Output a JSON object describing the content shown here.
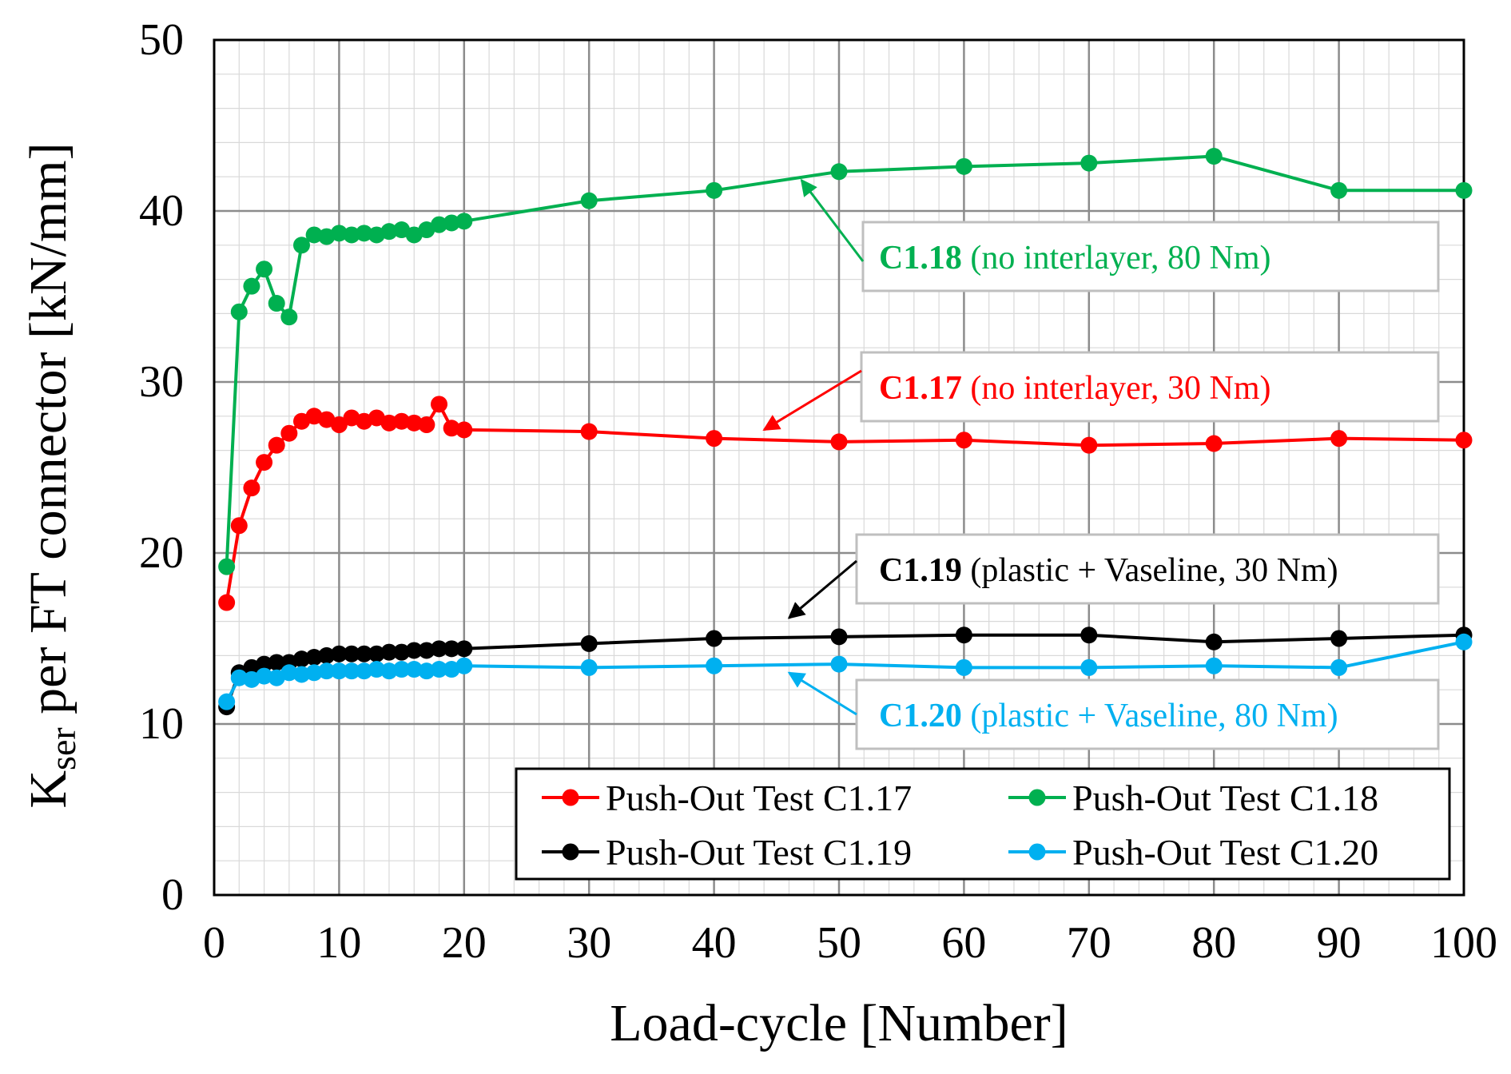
{
  "chart_data": {
    "type": "line",
    "title": "",
    "xlabel": "Load-cycle [Number]",
    "ylabel_main": "K",
    "ylabel_sub": "ser",
    "ylabel_rest": " per FT connector [kN/mm]",
    "xlim": [
      0,
      100
    ],
    "ylim": [
      0,
      50
    ],
    "xticks": [
      0,
      10,
      20,
      30,
      40,
      50,
      60,
      70,
      80,
      90,
      100
    ],
    "yticks": [
      0,
      10,
      20,
      30,
      40,
      50
    ],
    "grid": true,
    "x": [
      1,
      2,
      3,
      4,
      5,
      6,
      7,
      8,
      9,
      10,
      11,
      12,
      13,
      14,
      15,
      16,
      17,
      18,
      19,
      20,
      30,
      40,
      50,
      60,
      70,
      80,
      90,
      100
    ],
    "series": [
      {
        "name": "Push-Out Test C1.17",
        "color": "#ff0000",
        "values": [
          17.1,
          21.6,
          23.8,
          25.3,
          26.3,
          27.0,
          27.7,
          28.0,
          27.8,
          27.5,
          27.9,
          27.7,
          27.9,
          27.6,
          27.7,
          27.6,
          27.5,
          28.7,
          27.3,
          27.2,
          27.1,
          26.7,
          26.5,
          26.6,
          26.3,
          26.4,
          26.7,
          26.6
        ]
      },
      {
        "name": "Push-Out Test C1.18",
        "color": "#00b050",
        "values": [
          19.2,
          34.1,
          35.6,
          36.6,
          34.6,
          33.8,
          38.0,
          38.6,
          38.5,
          38.7,
          38.6,
          38.7,
          38.6,
          38.8,
          38.9,
          38.6,
          38.9,
          39.2,
          39.3,
          39.4,
          40.6,
          41.2,
          42.3,
          42.6,
          42.8,
          43.2,
          41.2,
          41.2
        ]
      },
      {
        "name": "Push-Out Test C1.19",
        "color": "#000000",
        "values": [
          11.0,
          13.0,
          13.3,
          13.5,
          13.6,
          13.6,
          13.8,
          13.9,
          14.0,
          14.1,
          14.1,
          14.1,
          14.1,
          14.2,
          14.2,
          14.3,
          14.3,
          14.4,
          14.4,
          14.4,
          14.7,
          15.0,
          15.1,
          15.2,
          15.2,
          14.8,
          15.0,
          15.2
        ]
      },
      {
        "name": "Push-Out Test C1.20",
        "color": "#00b0f0",
        "values": [
          11.3,
          12.7,
          12.6,
          12.8,
          12.7,
          13.0,
          12.9,
          13.0,
          13.1,
          13.1,
          13.1,
          13.1,
          13.2,
          13.1,
          13.2,
          13.2,
          13.1,
          13.2,
          13.2,
          13.4,
          13.3,
          13.4,
          13.5,
          13.3,
          13.3,
          13.4,
          13.3,
          14.8
        ]
      }
    ],
    "annotations": [
      {
        "bold": "C1.18",
        "rest": " (no interlayer, 80 Nm)",
        "color": "#00b050",
        "arrow_tip": {
          "x": 47,
          "y": 41.8
        }
      },
      {
        "bold": "C1.17",
        "rest": " (no interlayer, 30 Nm)",
        "color": "#ff0000",
        "arrow_tip": {
          "x": 44,
          "y": 27.2
        }
      },
      {
        "bold": "C1.19",
        "rest": " (plastic + Vaseline, 30 Nm)",
        "color": "#000000",
        "arrow_tip": {
          "x": 46,
          "y": 16.2
        }
      },
      {
        "bold": "C1.20",
        "rest": " (plastic + Vaseline, 80 Nm)",
        "color": "#00b0f0",
        "arrow_tip": {
          "x": 46,
          "y": 13.0
        }
      }
    ],
    "legend_position": "bottom-right"
  }
}
